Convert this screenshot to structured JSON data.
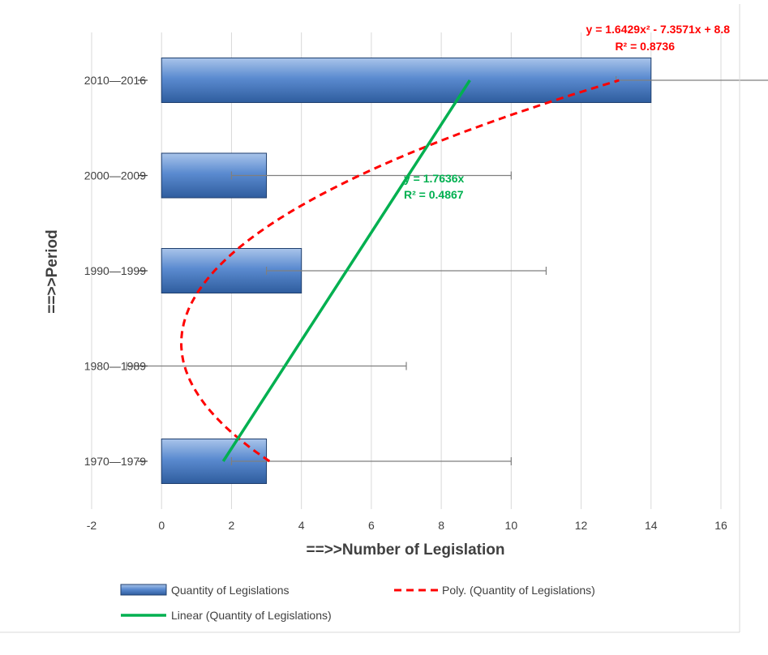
{
  "chart_data": {
    "type": "bar",
    "orientation": "horizontal",
    "categories": [
      "1970—1979",
      "1980—1989",
      "1990—1999",
      "2000—2009",
      "2010—2016"
    ],
    "series": [
      {
        "name": "Quantity of Legislations",
        "values": [
          3,
          0,
          4,
          3,
          14
        ],
        "error_plus": 7,
        "error_minus": 1,
        "color": "#4f81bd"
      }
    ],
    "trendlines": [
      {
        "name": "Poly. (Quantity of Legislations)",
        "kind": "polynomial",
        "coefficients": [
          1.6429,
          -7.3571,
          8.8
        ],
        "equation": "y = 1.6429x² - 7.3571x + 8.8",
        "r2": "R² = 0.8736",
        "color": "#ff0000",
        "dash": true
      },
      {
        "name": "Linear (Quantity of Legislations)",
        "kind": "linear",
        "coefficients": [
          1.7636,
          0
        ],
        "equation": "y = 1.7636x",
        "r2": "R² = 0.4867",
        "color": "#00b050",
        "dash": false
      }
    ],
    "xlabel": "==>>Number of Legislation",
    "ylabel": "==>>Period",
    "xlim": [
      -2,
      16
    ],
    "xticks": [
      "-2",
      "0",
      "2",
      "4",
      "6",
      "8",
      "10",
      "12",
      "14",
      "16"
    ],
    "grid": "vertical",
    "legend_position": "bottom"
  }
}
